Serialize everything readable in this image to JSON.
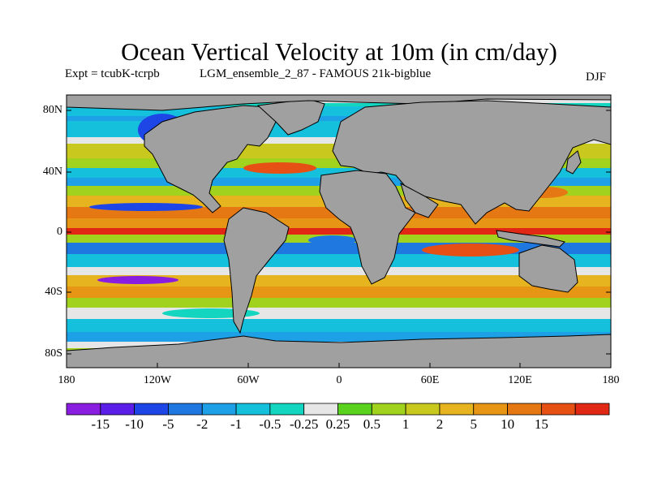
{
  "title": "Ocean Vertical Velocity at 10m (in cm/day)",
  "experiment": "Expt = tcubK-tcrpb",
  "run_name": "LGM_ensemble_2_87 - FAMOUS 21k-bigblue",
  "season": "DJF",
  "map": {
    "land_color": "#a0a0a0",
    "lat_ticks": [
      "80N",
      "40N",
      "0",
      "40S",
      "80S"
    ],
    "lon_ticks": [
      "180",
      "120W",
      "60W",
      "0",
      "60E",
      "120E",
      "180"
    ]
  },
  "colorbar": {
    "colors": [
      "#8a1ee0",
      "#5a1ee8",
      "#1e46e6",
      "#1e78e0",
      "#1ea0e6",
      "#14c0dc",
      "#14d6c0",
      "#e6e6e6",
      "#5ad21e",
      "#a0d21e",
      "#c8c81e",
      "#e6b41e",
      "#e69614",
      "#e67814",
      "#e65014",
      "#e02814"
    ],
    "labels": [
      "-15",
      "-10",
      "-5",
      "-2",
      "-1",
      "-0.5",
      "-0.25",
      "0.25",
      "0.5",
      "1",
      "2",
      "5",
      "10",
      "15"
    ]
  }
}
